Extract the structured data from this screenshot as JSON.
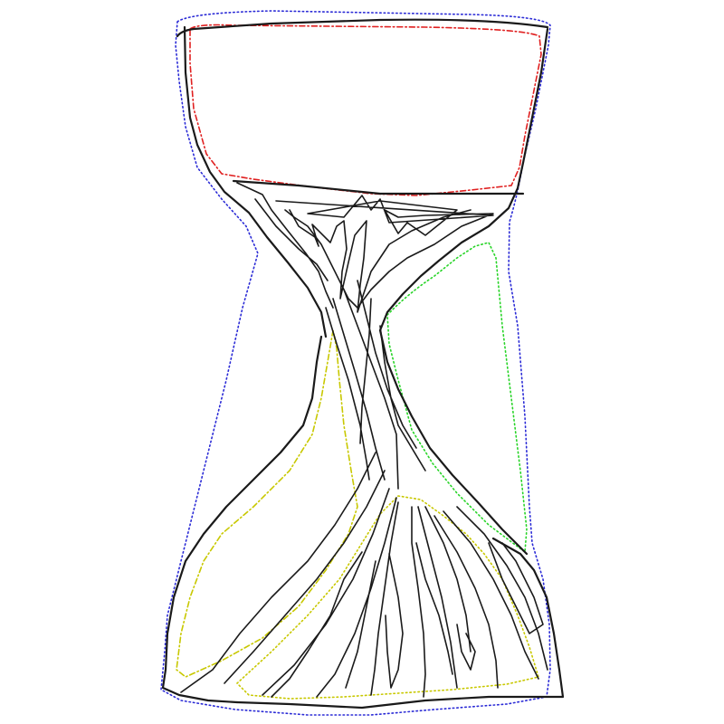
{
  "colors": {
    "ink": "#1a1a1a",
    "outline": "#2b2bd6",
    "top_region": "#e02020",
    "right_region": "#27d427",
    "bottom_region": "#c8c800",
    "background": "#ffffff"
  },
  "regions": [
    "top-region",
    "right-region",
    "left-region",
    "bottom-region",
    "outer-boundary"
  ]
}
